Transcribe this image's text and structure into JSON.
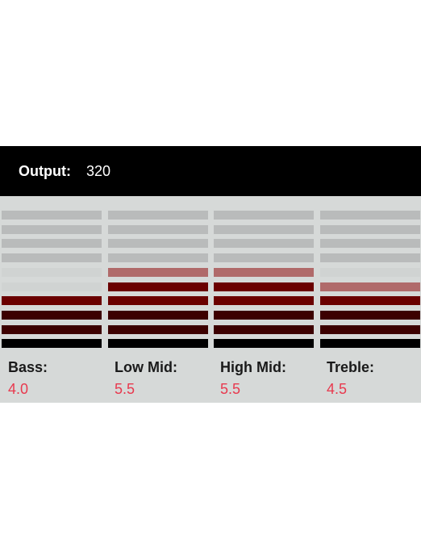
{
  "output": {
    "label": "Output:",
    "value": "320"
  },
  "eq": {
    "segments_per_band": 10,
    "colors": {
      "inactive_top": "#b9bbbb",
      "inactive_bottom": "#d0d3d2",
      "half": "#b06a6a",
      "active_upper": "#6a0000",
      "active_lower": "#3c0000",
      "active_base": "#000000"
    },
    "bands": [
      {
        "label": "Bass:",
        "value": "4.0",
        "level": 4.0
      },
      {
        "label": "Low Mid:",
        "value": "5.5",
        "level": 5.5
      },
      {
        "label": "High Mid:",
        "value": "5.5",
        "level": 5.5
      },
      {
        "label": "Treble:",
        "value": "4.5",
        "level": 4.5
      }
    ]
  }
}
